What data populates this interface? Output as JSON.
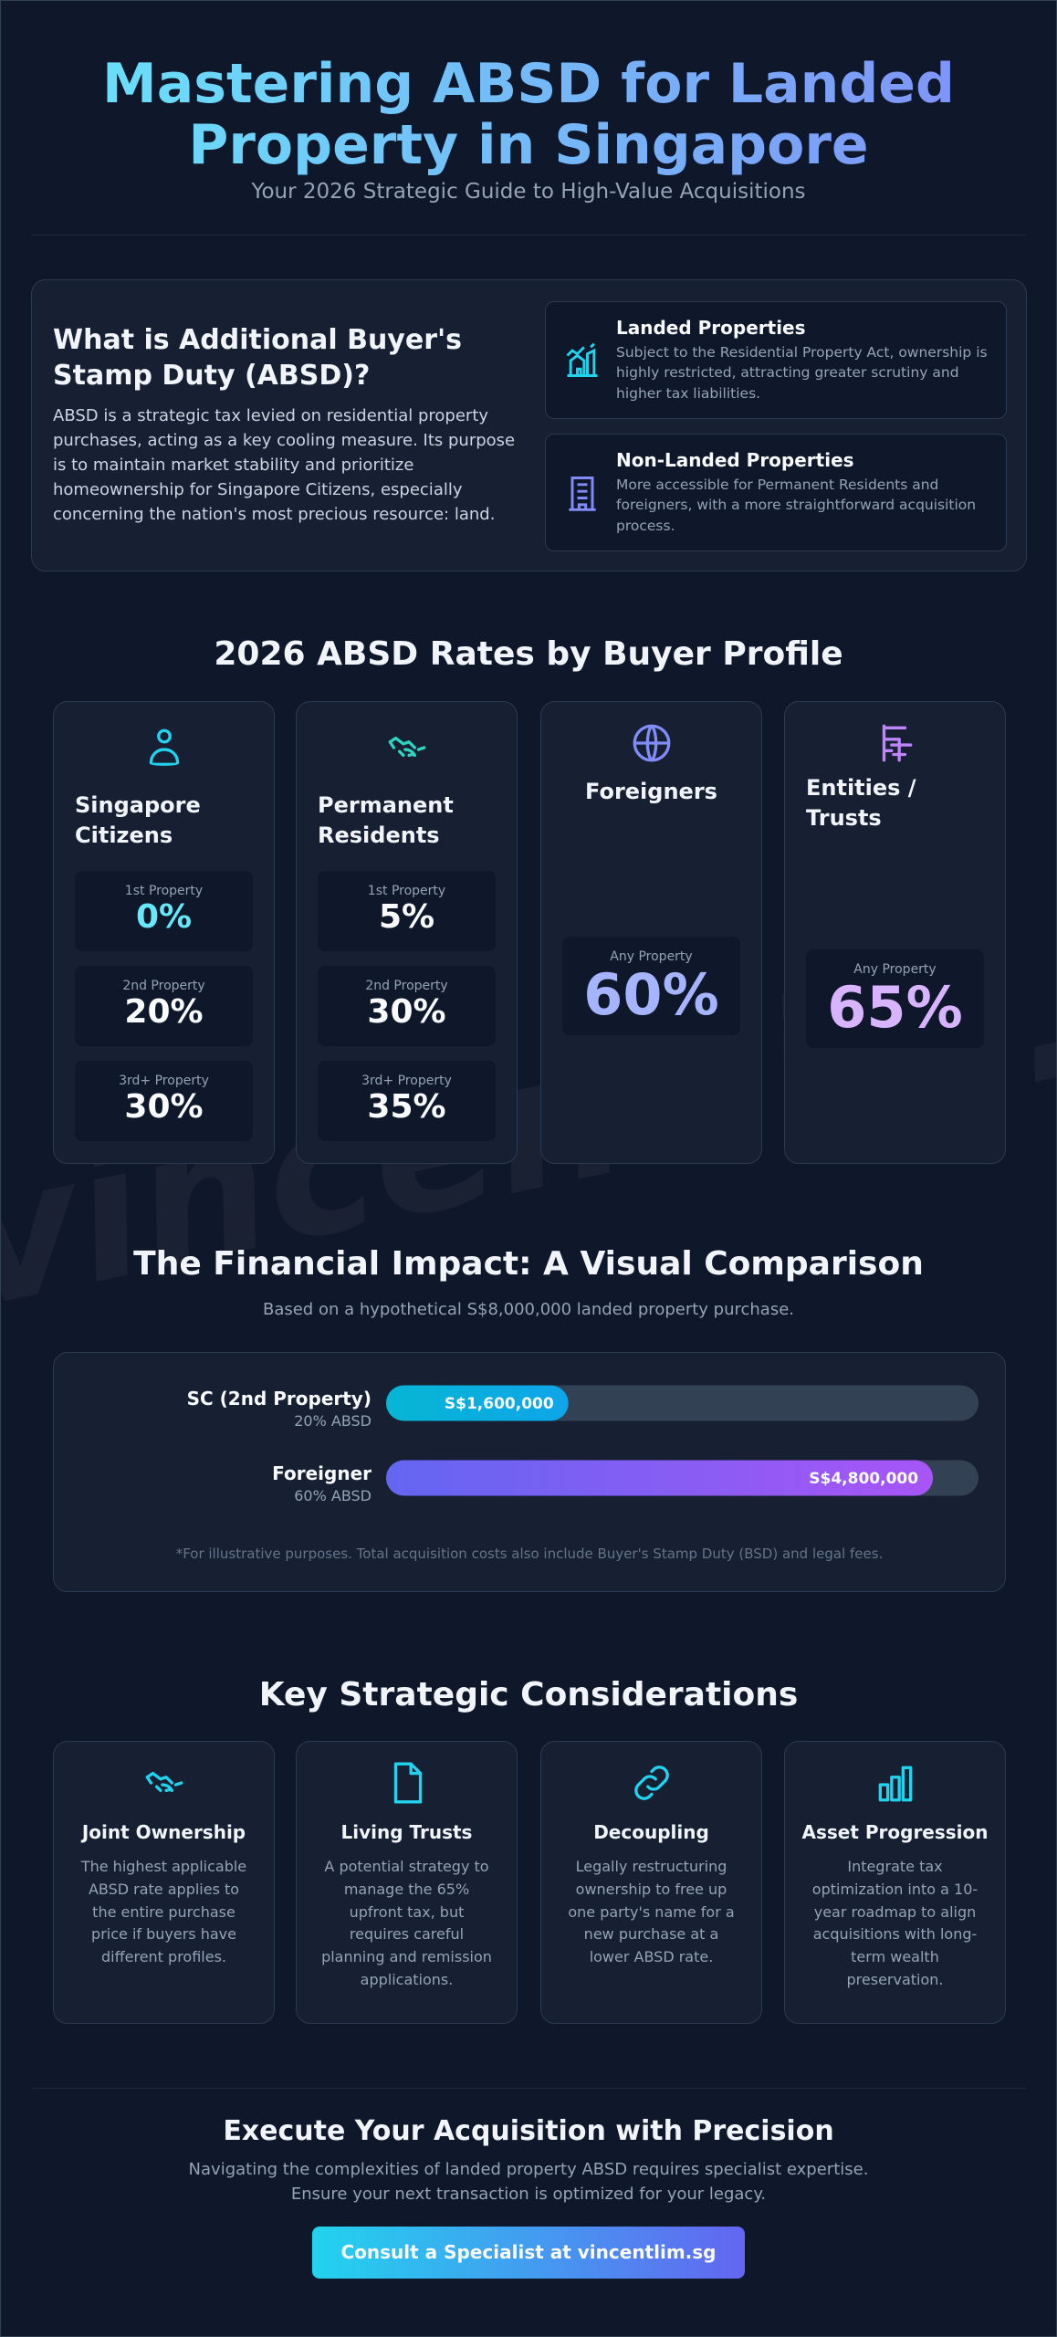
{
  "header": {
    "title": "Mastering ABSD for Landed Property in Singapore",
    "subtitle": "Your 2026 Strategic Guide to High-Value Acquisitions"
  },
  "intro": {
    "heading": "What is Additional Buyer's Stamp Duty (ABSD)?",
    "body": "ABSD is a strategic tax levied on residential property purchases, acting as a key cooling measure. Its purpose is to maintain market stability and prioritize homeownership for Singapore Citizens, especially concerning the nation's most precious resource: land.",
    "types": [
      {
        "title": "Landed Properties",
        "text": "Subject to the Residential Property Act, ownership is highly restricted, attracting greater scrutiny and higher tax liabilities."
      },
      {
        "title": "Non-Landed Properties",
        "text": "More accessible for Permanent Residents and foreigners, with a more straightforward acquisition process."
      }
    ]
  },
  "rates": {
    "heading": "2026 ABSD Rates by Buyer Profile",
    "profiles": [
      {
        "name": "Singapore Citizens",
        "rates": [
          {
            "label": "1st Property",
            "value": "0%"
          },
          {
            "label": "2nd Property",
            "value": "20%"
          },
          {
            "label": "3rd+ Property",
            "value": "30%"
          }
        ]
      },
      {
        "name": "Permanent Residents",
        "rates": [
          {
            "label": "1st Property",
            "value": "5%"
          },
          {
            "label": "2nd Property",
            "value": "30%"
          },
          {
            "label": "3rd+ Property",
            "value": "35%"
          }
        ]
      },
      {
        "name": "Foreigners",
        "rates": [
          {
            "label": "Any Property",
            "value": "60%"
          }
        ]
      },
      {
        "name": "Entities / Trusts",
        "rates": [
          {
            "label": "Any Property",
            "value": "65%"
          }
        ]
      }
    ]
  },
  "chart_data": {
    "type": "bar",
    "title": "The Financial Impact: A Visual Comparison",
    "subtitle": "Based on a hypothetical S$8,000,000 landed property purchase.",
    "categories": [
      "SC (2nd Property)",
      "Foreigner"
    ],
    "category_notes": [
      "20% ABSD",
      "60% ABSD"
    ],
    "values": [
      1600000,
      4800000
    ],
    "value_labels": [
      "S$1,600,000",
      "S$4,800,000"
    ],
    "colors": [
      {
        "from": "#06b6d4",
        "to": "#0ea5e9"
      },
      {
        "from": "#6366f1",
        "to": "#a855f7"
      }
    ],
    "xlim": [
      0,
      5200000
    ],
    "note": "*For illustrative purposes. Total acquisition costs also include Buyer's Stamp Duty (BSD) and legal fees."
  },
  "considerations": {
    "heading": "Key Strategic Considerations",
    "items": [
      {
        "title": "Joint Ownership",
        "text": "The highest applicable ABSD rate applies to the entire purchase price if buyers have different profiles."
      },
      {
        "title": "Living Trusts",
        "text": "A potential strategy to manage the 65% upfront tax, but requires careful planning and remission applications."
      },
      {
        "title": "Decoupling",
        "text": "Legally restructuring ownership to free up one party's name for a new purchase at a lower ABSD rate."
      },
      {
        "title": "Asset Progression",
        "text": "Integrate tax optimization into a 10-year roadmap to align acquisitions with long-term wealth preservation."
      }
    ]
  },
  "cta": {
    "heading": "Execute Your Acquisition with Precision",
    "lines": [
      "Navigating the complexities of landed property ABSD requires specialist expertise.",
      "Ensure your next transaction is optimized for your legacy."
    ],
    "button": "Consult a Specialist at vincentlim.sg"
  },
  "watermark": "vincentlim.sg"
}
